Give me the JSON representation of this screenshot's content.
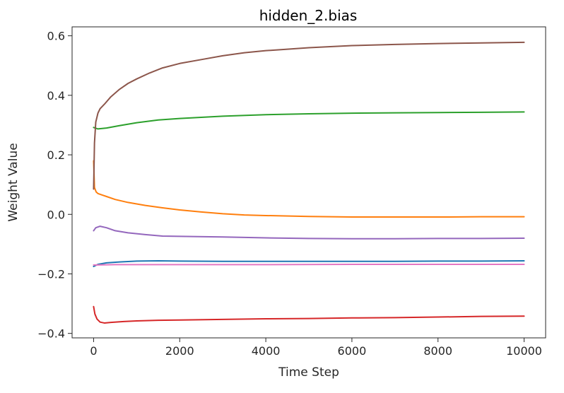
{
  "chart_data": {
    "type": "line",
    "title": "hidden_2.bias",
    "xlabel": "Time Step",
    "ylabel": "Weight Value",
    "xlim": [
      -500,
      10500
    ],
    "ylim": [
      -0.415,
      0.63
    ],
    "xticks": [
      0,
      2000,
      4000,
      6000,
      8000,
      10000
    ],
    "xtick_labels": [
      "0",
      "2000",
      "4000",
      "6000",
      "8000",
      "10000"
    ],
    "yticks": [
      -0.4,
      -0.2,
      0.0,
      0.2,
      0.4,
      0.6
    ],
    "ytick_labels": [
      "−0.4",
      "−0.2",
      "0.0",
      "0.2",
      "0.4",
      "0.6"
    ],
    "grid": false,
    "legend": false,
    "series": [
      {
        "color": "#1f77b4",
        "x": [
          0,
          100,
          300,
          600,
          1000,
          1500,
          2000,
          3000,
          4000,
          5000,
          6000,
          7000,
          8000,
          9000,
          10000
        ],
        "y": [
          -0.175,
          -0.168,
          -0.163,
          -0.16,
          -0.157,
          -0.156,
          -0.157,
          -0.158,
          -0.158,
          -0.158,
          -0.158,
          -0.158,
          -0.157,
          -0.157,
          -0.156
        ]
      },
      {
        "color": "#ff7f0e",
        "x": [
          0,
          20,
          60,
          100,
          200,
          300,
          500,
          800,
          1200,
          1600,
          2000,
          2500,
          3000,
          3500,
          4000,
          5000,
          6000,
          7000,
          8000,
          9000,
          10000
        ],
        "y": [
          0.18,
          0.09,
          0.075,
          0.07,
          0.065,
          0.06,
          0.05,
          0.04,
          0.03,
          0.022,
          0.015,
          0.008,
          0.002,
          -0.002,
          -0.004,
          -0.007,
          -0.009,
          -0.009,
          -0.009,
          -0.008,
          -0.008
        ]
      },
      {
        "color": "#2ca02c",
        "x": [
          0,
          100,
          300,
          600,
          1000,
          1500,
          2000,
          2500,
          3000,
          4000,
          5000,
          6000,
          7000,
          8000,
          9000,
          10000
        ],
        "y": [
          0.292,
          0.287,
          0.29,
          0.298,
          0.308,
          0.317,
          0.322,
          0.326,
          0.33,
          0.335,
          0.338,
          0.34,
          0.341,
          0.342,
          0.343,
          0.344
        ]
      },
      {
        "color": "#d62728",
        "x": [
          0,
          30,
          80,
          150,
          250,
          400,
          700,
          1000,
          1500,
          2000,
          3000,
          4000,
          5000,
          6000,
          7000,
          8000,
          9000,
          10000
        ],
        "y": [
          -0.31,
          -0.335,
          -0.352,
          -0.362,
          -0.365,
          -0.363,
          -0.36,
          -0.358,
          -0.356,
          -0.355,
          -0.353,
          -0.351,
          -0.35,
          -0.348,
          -0.347,
          -0.345,
          -0.343,
          -0.342
        ]
      },
      {
        "color": "#9467bd",
        "x": [
          0,
          50,
          150,
          300,
          500,
          800,
          1200,
          1600,
          2000,
          3000,
          4000,
          5000,
          6000,
          7000,
          8000,
          9000,
          10000
        ],
        "y": [
          -0.055,
          -0.045,
          -0.04,
          -0.045,
          -0.055,
          -0.062,
          -0.068,
          -0.073,
          -0.074,
          -0.076,
          -0.079,
          -0.081,
          -0.082,
          -0.082,
          -0.081,
          -0.081,
          -0.08
        ]
      },
      {
        "color": "#8c564b",
        "x": [
          0,
          20,
          50,
          100,
          150,
          250,
          400,
          600,
          800,
          1000,
          1300,
          1600,
          2000,
          2500,
          3000,
          3500,
          4000,
          4500,
          5000,
          6000,
          7000,
          8000,
          9000,
          10000
        ],
        "y": [
          0.085,
          0.24,
          0.31,
          0.34,
          0.355,
          0.37,
          0.395,
          0.42,
          0.44,
          0.455,
          0.475,
          0.492,
          0.507,
          0.52,
          0.533,
          0.543,
          0.55,
          0.555,
          0.56,
          0.567,
          0.571,
          0.574,
          0.576,
          0.578
        ]
      },
      {
        "color": "#e377c2",
        "x": [
          0,
          100,
          500,
          1000,
          2000,
          4000,
          6000,
          8000,
          10000
        ],
        "y": [
          -0.17,
          -0.17,
          -0.169,
          -0.169,
          -0.169,
          -0.169,
          -0.168,
          -0.168,
          -0.168
        ]
      }
    ]
  }
}
